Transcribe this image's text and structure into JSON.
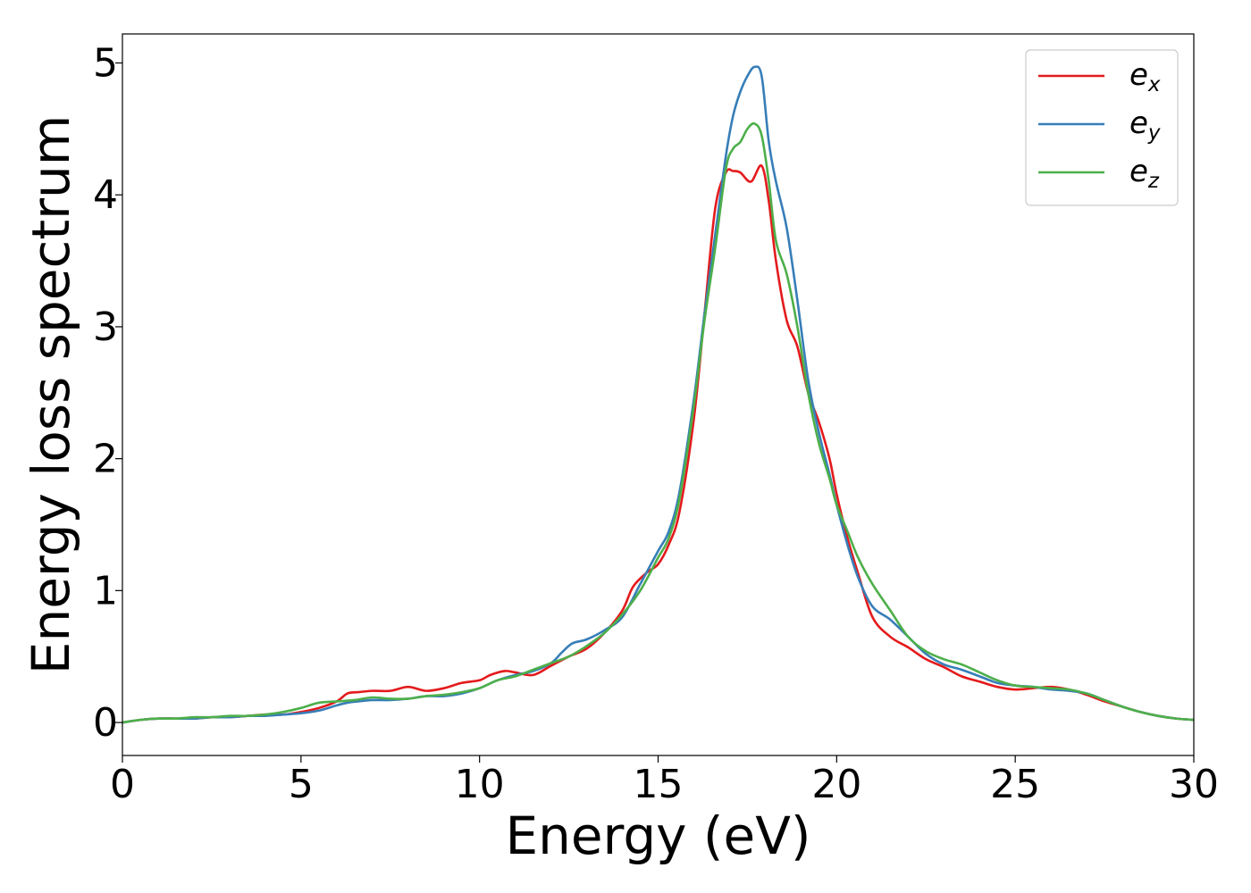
{
  "chart_data": {
    "type": "line",
    "title": "",
    "xlabel": "Energy (eV)",
    "ylabel": "Energy loss spectrum",
    "xlim": [
      0,
      30
    ],
    "ylim": [
      -0.25,
      5.22
    ],
    "xticks": [
      0,
      5,
      10,
      15,
      20,
      25,
      30
    ],
    "xtick_labels": [
      "0",
      "5",
      "10",
      "15",
      "20",
      "25",
      "30"
    ],
    "yticks": [
      0,
      1,
      2,
      3,
      4,
      5
    ],
    "ytick_labels": [
      "0",
      "1",
      "2",
      "3",
      "4",
      "5"
    ],
    "grid": false,
    "legend_position": "top-right",
    "series": [
      {
        "name": "e_x",
        "label_main": "e",
        "label_sub": "x",
        "color": "#e41a1c",
        "x": [
          0,
          0.5,
          1,
          1.5,
          2,
          2.5,
          3,
          3.5,
          4,
          4.5,
          5,
          5.5,
          6,
          6.3,
          6.6,
          7,
          7.5,
          8,
          8.5,
          9,
          9.5,
          10,
          10.3,
          10.7,
          11,
          11.5,
          12,
          12.5,
          13,
          13.5,
          14,
          14.3,
          14.7,
          15,
          15.3,
          15.6,
          16,
          16.3,
          16.6,
          16.9,
          17.1,
          17.3,
          17.6,
          17.9,
          18.1,
          18.3,
          18.6,
          18.9,
          19.2,
          19.5,
          19.8,
          20,
          20.3,
          20.6,
          21,
          21.5,
          22,
          22.5,
          23,
          23.5,
          24,
          24.5,
          25,
          25.5,
          26,
          26.5,
          27,
          27.5,
          28,
          28.5,
          29,
          29.5,
          30
        ],
        "y": [
          0.0,
          0.02,
          0.03,
          0.03,
          0.03,
          0.04,
          0.04,
          0.05,
          0.06,
          0.06,
          0.08,
          0.11,
          0.16,
          0.22,
          0.23,
          0.24,
          0.24,
          0.27,
          0.24,
          0.26,
          0.3,
          0.32,
          0.36,
          0.39,
          0.38,
          0.36,
          0.43,
          0.5,
          0.56,
          0.68,
          0.85,
          1.03,
          1.14,
          1.2,
          1.35,
          1.6,
          2.3,
          3.1,
          3.9,
          4.17,
          4.18,
          4.17,
          4.1,
          4.22,
          3.95,
          3.5,
          3.05,
          2.85,
          2.5,
          2.28,
          2.0,
          1.73,
          1.4,
          1.13,
          0.8,
          0.65,
          0.57,
          0.48,
          0.42,
          0.35,
          0.31,
          0.27,
          0.25,
          0.26,
          0.27,
          0.25,
          0.21,
          0.16,
          0.12,
          0.08,
          0.05,
          0.03,
          0.02
        ]
      },
      {
        "name": "e_y",
        "label_main": "e",
        "label_sub": "y",
        "color": "#377eb8",
        "x": [
          0,
          0.5,
          1,
          1.5,
          2,
          2.5,
          3,
          3.5,
          4,
          4.5,
          5,
          5.5,
          6,
          6.3,
          6.6,
          7,
          7.5,
          8,
          8.5,
          9,
          9.5,
          10,
          10.5,
          11,
          11.5,
          12,
          12.3,
          12.6,
          13,
          13.5,
          14,
          14.5,
          15,
          15.3,
          15.6,
          16,
          16.3,
          16.6,
          16.9,
          17.1,
          17.3,
          17.5,
          17.7,
          17.9,
          18.1,
          18.3,
          18.6,
          18.9,
          19.2,
          19.5,
          19.8,
          20,
          20.3,
          20.6,
          21,
          21.5,
          22,
          22.5,
          23,
          23.5,
          24,
          24.5,
          25,
          25.5,
          26,
          26.5,
          27,
          27.5,
          28,
          28.5,
          29,
          29.5,
          30
        ],
        "y": [
          0.0,
          0.02,
          0.03,
          0.03,
          0.03,
          0.04,
          0.04,
          0.05,
          0.05,
          0.06,
          0.07,
          0.09,
          0.13,
          0.15,
          0.16,
          0.17,
          0.17,
          0.18,
          0.2,
          0.2,
          0.22,
          0.26,
          0.32,
          0.36,
          0.39,
          0.45,
          0.53,
          0.6,
          0.63,
          0.7,
          0.8,
          1.05,
          1.3,
          1.45,
          1.75,
          2.45,
          3.1,
          3.7,
          4.3,
          4.6,
          4.78,
          4.9,
          4.97,
          4.9,
          4.4,
          4.1,
          3.75,
          3.2,
          2.6,
          2.2,
          1.88,
          1.65,
          1.35,
          1.1,
          0.88,
          0.78,
          0.65,
          0.52,
          0.44,
          0.4,
          0.35,
          0.3,
          0.28,
          0.27,
          0.25,
          0.24,
          0.22,
          0.17,
          0.12,
          0.08,
          0.05,
          0.03,
          0.02
        ]
      },
      {
        "name": "e_z",
        "label_main": "e",
        "label_sub": "z",
        "color": "#4daf4a",
        "x": [
          0,
          0.5,
          1,
          1.5,
          2,
          2.5,
          3,
          3.5,
          4,
          4.5,
          5,
          5.5,
          6,
          6.5,
          7,
          7.5,
          8,
          8.5,
          9,
          9.5,
          10,
          10.5,
          11,
          11.5,
          12,
          12.5,
          13,
          13.5,
          14,
          14.5,
          15,
          15.3,
          15.6,
          16,
          16.3,
          16.6,
          16.9,
          17.1,
          17.3,
          17.5,
          17.7,
          17.9,
          18.1,
          18.3,
          18.6,
          18.9,
          19.2,
          19.5,
          19.8,
          20,
          20.3,
          20.6,
          21,
          21.5,
          22,
          22.5,
          23,
          23.5,
          24,
          24.5,
          25,
          25.5,
          26,
          26.5,
          27,
          27.5,
          28,
          28.5,
          29,
          29.5,
          30
        ],
        "y": [
          0.0,
          0.02,
          0.03,
          0.03,
          0.04,
          0.04,
          0.05,
          0.05,
          0.06,
          0.08,
          0.11,
          0.15,
          0.16,
          0.17,
          0.19,
          0.18,
          0.18,
          0.2,
          0.21,
          0.23,
          0.26,
          0.32,
          0.35,
          0.4,
          0.45,
          0.5,
          0.58,
          0.68,
          0.82,
          1.0,
          1.25,
          1.4,
          1.7,
          2.4,
          3.05,
          3.6,
          4.2,
          4.35,
          4.4,
          4.5,
          4.54,
          4.45,
          4.1,
          3.65,
          3.4,
          3.0,
          2.5,
          2.12,
          1.85,
          1.65,
          1.45,
          1.25,
          1.05,
          0.85,
          0.65,
          0.54,
          0.48,
          0.44,
          0.38,
          0.32,
          0.28,
          0.27,
          0.26,
          0.25,
          0.22,
          0.17,
          0.12,
          0.08,
          0.05,
          0.03,
          0.02
        ]
      }
    ]
  }
}
